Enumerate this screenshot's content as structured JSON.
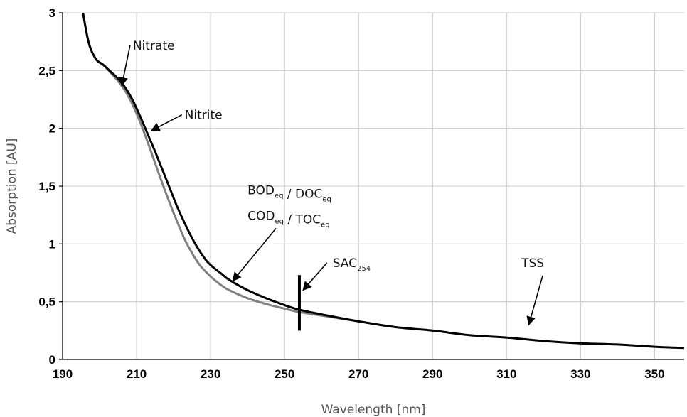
{
  "chart_data": {
    "type": "line",
    "xlabel": "Wavelength [nm]",
    "ylabel": "Absorption [AU]",
    "xlim": [
      190,
      358
    ],
    "ylim": [
      0,
      3
    ],
    "x_ticks": [
      "190",
      "210",
      "230",
      "250",
      "270",
      "290",
      "310",
      "330",
      "350"
    ],
    "y_ticks": [
      "0",
      "0,5",
      "1",
      "1,5",
      "2",
      "2,5",
      "3"
    ],
    "grid": true,
    "series": [
      {
        "color": "#000000",
        "x": [
          195,
          197,
          199,
          201,
          203,
          205,
          207,
          209,
          211,
          213,
          215,
          217,
          219,
          221,
          223,
          225,
          227,
          229,
          231,
          233,
          235,
          240,
          245,
          250,
          254,
          260,
          270,
          280,
          290,
          300,
          310,
          320,
          330,
          340,
          350,
          358
        ],
        "y": [
          3.1,
          2.75,
          2.6,
          2.55,
          2.49,
          2.43,
          2.35,
          2.24,
          2.1,
          1.95,
          1.8,
          1.64,
          1.48,
          1.32,
          1.18,
          1.05,
          0.94,
          0.85,
          0.79,
          0.74,
          0.69,
          0.6,
          0.53,
          0.47,
          0.43,
          0.39,
          0.33,
          0.28,
          0.25,
          0.21,
          0.19,
          0.16,
          0.14,
          0.13,
          0.11,
          0.1
        ]
      },
      {
        "color": "#808080",
        "x": [
          195,
          197,
          199,
          201,
          203,
          205,
          207,
          209,
          211,
          213,
          215,
          217,
          219,
          221,
          223,
          225,
          227,
          229,
          231,
          233,
          235,
          240,
          245,
          250,
          254,
          260,
          270
        ],
        "y": [
          3.1,
          2.75,
          2.6,
          2.55,
          2.48,
          2.41,
          2.32,
          2.2,
          2.05,
          1.88,
          1.7,
          1.52,
          1.35,
          1.19,
          1.04,
          0.92,
          0.82,
          0.75,
          0.69,
          0.64,
          0.6,
          0.53,
          0.48,
          0.44,
          0.41,
          0.38,
          0.33
        ]
      }
    ],
    "annotations": [
      {
        "id": "nitrate",
        "text": "Nitrate",
        "text_at": [
          209,
          2.68
        ],
        "tip": [
          206,
          2.37
        ]
      },
      {
        "id": "nitrite",
        "text": "Nitrite",
        "text_at": [
          223,
          2.08
        ],
        "tip": [
          214,
          1.98
        ]
      },
      {
        "id": "bod",
        "lines": [
          [
            [
              "BOD",
              "eq"
            ],
            [
              " / DOC",
              "eq"
            ]
          ],
          [
            [
              "COD",
              "eq"
            ],
            [
              " / TOC",
              "eq"
            ]
          ]
        ],
        "text_at": [
          240,
          1.43
        ],
        "tip": [
          236,
          0.68
        ]
      },
      {
        "id": "sac",
        "text": "SAC",
        "sub": "254",
        "text_at": [
          263,
          0.8
        ],
        "tip": [
          255,
          0.6
        ]
      },
      {
        "id": "tss",
        "text": "TSS",
        "text_at": [
          314,
          0.8
        ],
        "tip": [
          316,
          0.3
        ]
      }
    ],
    "marker": {
      "label": "SAC254",
      "x": 254,
      "y_range": [
        0.25,
        0.73
      ]
    }
  }
}
